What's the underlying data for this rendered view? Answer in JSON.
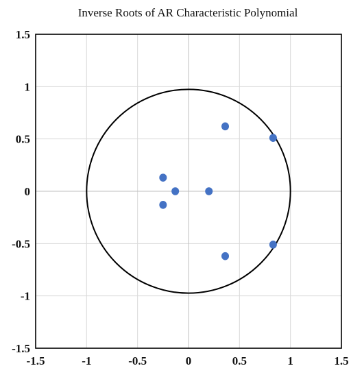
{
  "chart_data": {
    "type": "scatter",
    "title": "Inverse Roots of AR Characteristic  Polynomial",
    "xlabel": "",
    "ylabel": "",
    "xlim": [
      -1.5,
      1.5
    ],
    "ylim": [
      -1.5,
      1.5
    ],
    "x_ticks": [
      -1.5,
      -1,
      -0.5,
      0,
      0.5,
      1,
      1.5
    ],
    "y_ticks": [
      -1.5,
      -1,
      -0.5,
      0,
      0.5,
      1,
      1.5
    ],
    "x_tick_labels": [
      "-1.5",
      "-1",
      "-0.5",
      "0",
      "0.5",
      "1",
      "1.5"
    ],
    "y_tick_labels": [
      "-1.5",
      "-1",
      "-0.5",
      "0",
      "0.5",
      "1",
      "1.5"
    ],
    "grid": true,
    "legend": "none",
    "marker_color": "#4472c4",
    "reference_circle": {
      "center": [
        0,
        0
      ],
      "radius": 1,
      "color": "#000000"
    },
    "series": [
      {
        "points": [
          {
            "x": 0.36,
            "y": 0.62
          },
          {
            "x": 0.83,
            "y": 0.51
          },
          {
            "x": -0.25,
            "y": 0.13
          },
          {
            "x": -0.13,
            "y": 0.0
          },
          {
            "x": 0.2,
            "y": 0.0
          },
          {
            "x": -0.25,
            "y": -0.13
          },
          {
            "x": 0.83,
            "y": -0.51
          },
          {
            "x": 0.36,
            "y": -0.62
          }
        ]
      }
    ]
  }
}
